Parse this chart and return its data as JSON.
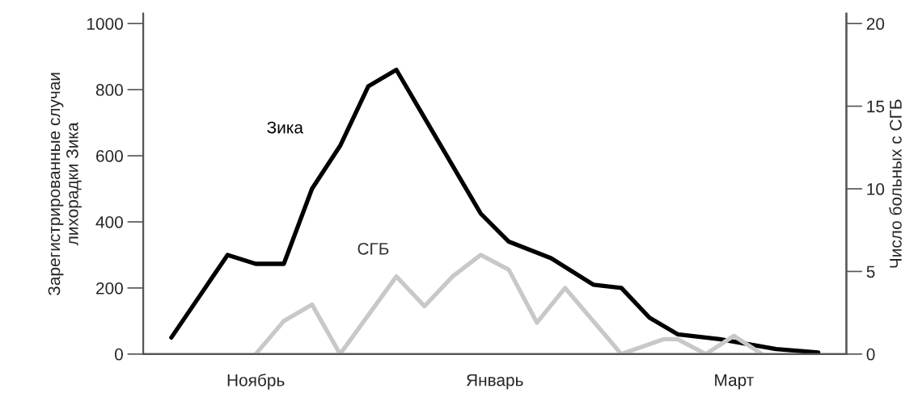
{
  "chart_data": {
    "type": "line",
    "categories": [
      null,
      null,
      null,
      null,
      null,
      null,
      null,
      null,
      "Ноябрь",
      null,
      null,
      null,
      null,
      null,
      null,
      null,
      null,
      null,
      null,
      null,
      null,
      null,
      null,
      null,
      null,
      "Январь",
      null,
      null,
      null,
      null,
      null,
      null,
      null,
      null,
      null,
      null,
      null,
      null,
      null,
      null,
      null,
      null,
      "Март",
      null,
      null,
      null,
      null,
      null,
      null,
      null,
      null
    ],
    "ylim": [
      0,
      1030
    ],
    "yticks": [
      0,
      200,
      400,
      600,
      800,
      1000
    ],
    "y2lim": [
      0,
      20.6
    ],
    "y2ticks": [
      0,
      5,
      10,
      15,
      20
    ],
    "ylabel": "Зарегистрированные случаи\nлихорадки Зика",
    "y2label": "Число больных с СГБ",
    "grid": false,
    "legend": false,
    "marker": "none",
    "line_style": "solid",
    "series": [
      {
        "name": "Зика",
        "color": "#000000",
        "values": [
          null,
          null,
          50,
          null,
          null,
          null,
          300,
          null,
          273,
          null,
          273,
          null,
          500,
          null,
          630,
          null,
          810,
          null,
          860,
          null,
          null,
          null,
          null,
          null,
          425,
          null,
          340,
          null,
          null,
          290,
          null,
          null,
          210,
          null,
          200,
          null,
          110,
          null,
          60,
          null,
          null,
          45,
          null,
          null,
          null,
          15,
          null,
          null,
          5,
          null,
          null
        ]
      },
      {
        "name": "СГБ",
        "color": "#c8c8c8",
        "axis": "y2",
        "values": [
          null,
          null,
          null,
          null,
          null,
          null,
          null,
          null,
          0,
          null,
          2,
          null,
          3,
          null,
          0,
          null,
          null,
          null,
          4.7,
          null,
          2.9,
          null,
          4.7,
          null,
          6,
          null,
          5.1,
          null,
          1.9,
          null,
          4,
          null,
          null,
          null,
          0,
          null,
          null,
          0.9,
          0.9,
          null,
          0,
          null,
          1.1,
          null,
          0,
          null,
          null,
          null,
          null,
          null,
          null
        ]
      }
    ]
  }
}
